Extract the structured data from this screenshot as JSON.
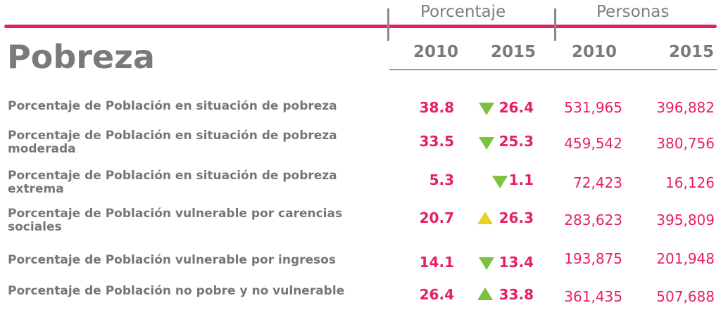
{
  "header": {
    "groups": [
      "Porcentaje",
      "Personas"
    ],
    "title": "Pobreza",
    "years": [
      "2010",
      "2015",
      "2010",
      "2015"
    ]
  },
  "rows": [
    {
      "label_1": "Porcentaje de Población en situación de pobreza",
      "label_2": "",
      "pct_2010": "38.8",
      "pct_2015": "26.4",
      "trend": "down",
      "trend_color": "#7cc142",
      "per_2010": "531,965",
      "per_2015": "396,882"
    },
    {
      "label_1": "Porcentaje de Población en situación de pobreza",
      "label_2": "moderada",
      "pct_2010": "33.5",
      "pct_2015": "25.3",
      "trend": "down",
      "trend_color": "#7cc142",
      "per_2010": "459,542",
      "per_2015": "380,756"
    },
    {
      "label_1": "Porcentaje de Población en situación de pobreza",
      "label_2": "extrema",
      "pct_2010": "5.3",
      "pct_2015": "1.1",
      "trend": "down",
      "trend_color": "#7cc142",
      "per_2010": "72,423",
      "per_2015": "16,126"
    },
    {
      "label_1": "Porcentaje de Población vulnerable por carencias",
      "label_2": "sociales",
      "pct_2010": "20.7",
      "pct_2015": "26.3",
      "trend": "up",
      "trend_color": "#e6d21f",
      "per_2010": "283,623",
      "per_2015": "395,809"
    },
    {
      "label_1": "Porcentaje de Población vulnerable por ingresos",
      "label_2": "",
      "pct_2010": "14.1",
      "pct_2015": "13.4",
      "trend": "down",
      "trend_color": "#7cc142",
      "per_2010": "193,875",
      "per_2015": "201,948"
    },
    {
      "label_1": "Porcentaje de Población no pobre y no vulnerable",
      "label_2": "",
      "pct_2010": "26.4",
      "pct_2015": "33.8",
      "trend": "up",
      "trend_color": "#7cc142",
      "per_2010": "361,435",
      "per_2015": "507,688"
    }
  ],
  "colors": {
    "accent": "#e6215c",
    "text_gray": "#7a7a7a",
    "decrease": "#7cc142",
    "increase": "#e6d21f"
  }
}
